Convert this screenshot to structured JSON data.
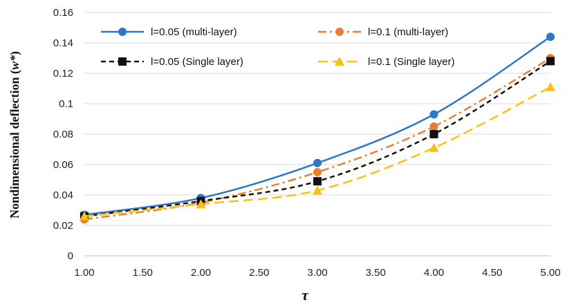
{
  "chart_data": {
    "type": "line",
    "title": "",
    "xlabel": "τ",
    "ylabel": "Nondimensional deflection (",
    "ylabel_var": "w*",
    "ylabel_close": ")",
    "xlim": [
      1.0,
      5.0
    ],
    "ylim": [
      0,
      0.16
    ],
    "x_ticks": [
      1.0,
      1.5,
      2.0,
      2.5,
      3.0,
      3.5,
      4.0,
      4.5,
      5.0
    ],
    "x_tick_labels": [
      "1.00",
      "1.50",
      "2.00",
      "2.50",
      "3.00",
      "3.50",
      "4.00",
      "4.50",
      "5.00"
    ],
    "y_ticks": [
      0,
      0.02,
      0.04,
      0.06,
      0.08,
      0.1,
      0.12,
      0.14,
      0.16
    ],
    "y_tick_labels": [
      "0",
      "0.02",
      "0.04",
      "0.06",
      "0.08",
      "0.1",
      "0.12",
      "0.14",
      "0.16"
    ],
    "grid": "horizontal",
    "legend_position": "top-left",
    "x": [
      1,
      2,
      3,
      4,
      5
    ],
    "series": [
      {
        "name": "l=0.05 (multi-layer)",
        "values": [
          0.027,
          0.038,
          0.061,
          0.093,
          0.144
        ],
        "color": "#2E75C8",
        "line": "solid",
        "marker": "circle"
      },
      {
        "name": "l=0.1 (multi-layer)",
        "values": [
          0.024,
          0.035,
          0.055,
          0.085,
          0.13
        ],
        "color": "#EE7D31",
        "line": "dashdot",
        "marker": "circle"
      },
      {
        "name": "l=0.05 (Single layer)",
        "values": [
          0.026,
          0.036,
          0.049,
          0.08,
          0.128
        ],
        "color": "#111111",
        "line": "dashed",
        "marker": "square"
      },
      {
        "name": "l=0.1 (Single layer)",
        "values": [
          0.026,
          0.034,
          0.043,
          0.071,
          0.111
        ],
        "color": "#FDC010",
        "line": "longdash",
        "marker": "triangle"
      }
    ]
  }
}
